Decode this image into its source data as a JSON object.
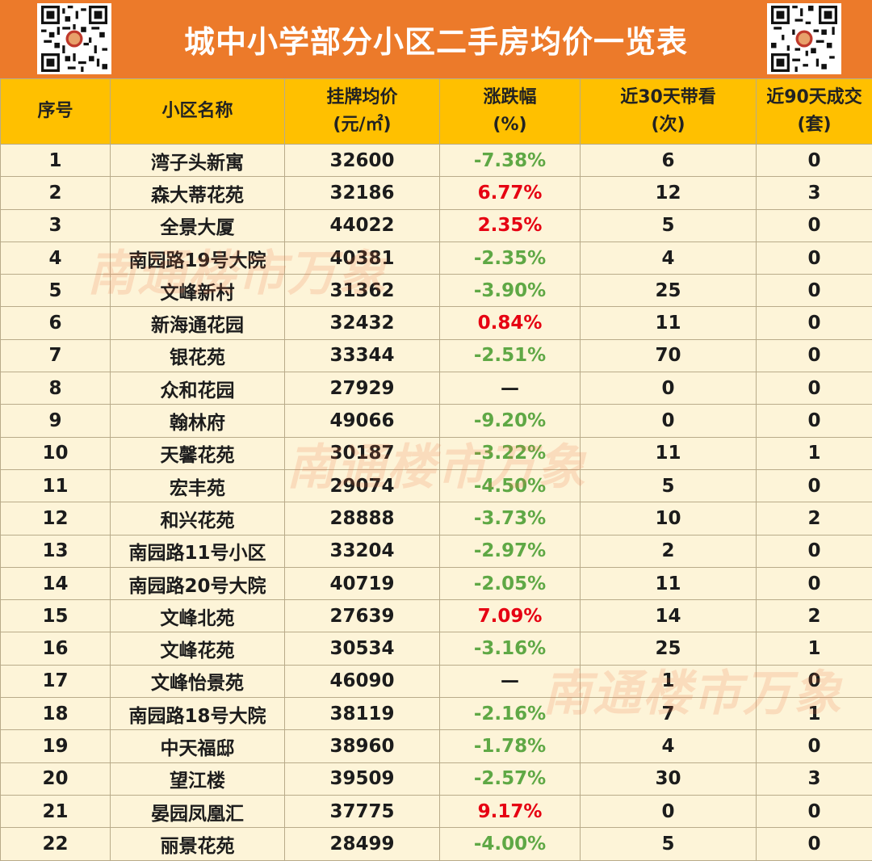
{
  "title": "城中小学部分小区二手房均价一览表",
  "colors": {
    "banner": "#ec7a2a",
    "header": "#ffc000",
    "row_bg": "#fdf4d8",
    "positive": "#e60012",
    "negative": "#5fa845"
  },
  "qr_codes": [
    "qr-code-icon",
    "qr-code-icon"
  ],
  "columns": [
    {
      "line1": "序号",
      "line2": ""
    },
    {
      "line1": "小区名称",
      "line2": ""
    },
    {
      "line1": "挂牌均价",
      "line2": "(元/㎡)"
    },
    {
      "line1": "涨跌幅",
      "line2": "(%)"
    },
    {
      "line1": "近30天带看",
      "line2": "(次)"
    },
    {
      "line1": "近90天成交",
      "line2": "(套)"
    }
  ],
  "rows": [
    {
      "no": "1",
      "name": "湾子头新寓",
      "price": "32600",
      "change": "-7.38%",
      "trend": "neg",
      "views": "6",
      "deals": "0"
    },
    {
      "no": "2",
      "name": "森大蒂花苑",
      "price": "32186",
      "change": "6.77%",
      "trend": "pos",
      "views": "12",
      "deals": "3"
    },
    {
      "no": "3",
      "name": "全景大厦",
      "price": "44022",
      "change": "2.35%",
      "trend": "pos",
      "views": "5",
      "deals": "0"
    },
    {
      "no": "4",
      "name": "南园路19号大院",
      "price": "40381",
      "change": "-2.35%",
      "trend": "neg",
      "views": "4",
      "deals": "0"
    },
    {
      "no": "5",
      "name": "文峰新村",
      "price": "31362",
      "change": "-3.90%",
      "trend": "neg",
      "views": "25",
      "deals": "0"
    },
    {
      "no": "6",
      "name": "新海通花园",
      "price": "32432",
      "change": "0.84%",
      "trend": "pos",
      "views": "11",
      "deals": "0"
    },
    {
      "no": "7",
      "name": "银花苑",
      "price": "33344",
      "change": "-2.51%",
      "trend": "neg",
      "views": "70",
      "deals": "0"
    },
    {
      "no": "8",
      "name": "众和花园",
      "price": "27929",
      "change": "—",
      "trend": "flat",
      "views": "0",
      "deals": "0"
    },
    {
      "no": "9",
      "name": "翰林府",
      "price": "49066",
      "change": "-9.20%",
      "trend": "neg",
      "views": "0",
      "deals": "0"
    },
    {
      "no": "10",
      "name": "天馨花苑",
      "price": "30187",
      "change": "-3.22%",
      "trend": "neg",
      "views": "11",
      "deals": "1"
    },
    {
      "no": "11",
      "name": "宏丰苑",
      "price": "29074",
      "change": "-4.50%",
      "trend": "neg",
      "views": "5",
      "deals": "0"
    },
    {
      "no": "12",
      "name": "和兴花苑",
      "price": "28888",
      "change": "-3.73%",
      "trend": "neg",
      "views": "10",
      "deals": "2"
    },
    {
      "no": "13",
      "name": "南园路11号小区",
      "price": "33204",
      "change": "-2.97%",
      "trend": "neg",
      "views": "2",
      "deals": "0"
    },
    {
      "no": "14",
      "name": "南园路20号大院",
      "price": "40719",
      "change": "-2.05%",
      "trend": "neg",
      "views": "11",
      "deals": "0"
    },
    {
      "no": "15",
      "name": "文峰北苑",
      "price": "27639",
      "change": "7.09%",
      "trend": "pos",
      "views": "14",
      "deals": "2"
    },
    {
      "no": "16",
      "name": "文峰花苑",
      "price": "30534",
      "change": "-3.16%",
      "trend": "neg",
      "views": "25",
      "deals": "1"
    },
    {
      "no": "17",
      "name": "文峰怡景苑",
      "price": "46090",
      "change": "—",
      "trend": "flat",
      "views": "1",
      "deals": "0"
    },
    {
      "no": "18",
      "name": "南园路18号大院",
      "price": "38119",
      "change": "-2.16%",
      "trend": "neg",
      "views": "7",
      "deals": "1"
    },
    {
      "no": "19",
      "name": "中天福邸",
      "price": "38960",
      "change": "-1.78%",
      "trend": "neg",
      "views": "4",
      "deals": "0"
    },
    {
      "no": "20",
      "name": "望江楼",
      "price": "39509",
      "change": "-2.57%",
      "trend": "neg",
      "views": "30",
      "deals": "3"
    },
    {
      "no": "21",
      "name": "晏园凤凰汇",
      "price": "37775",
      "change": "9.17%",
      "trend": "pos",
      "views": "0",
      "deals": "0"
    },
    {
      "no": "22",
      "name": "丽景花苑",
      "price": "28499",
      "change": "-4.00%",
      "trend": "neg",
      "views": "5",
      "deals": "0"
    }
  ],
  "watermarks": [
    "南通楼市万象",
    "南通楼市万象",
    "南通楼市万象"
  ]
}
